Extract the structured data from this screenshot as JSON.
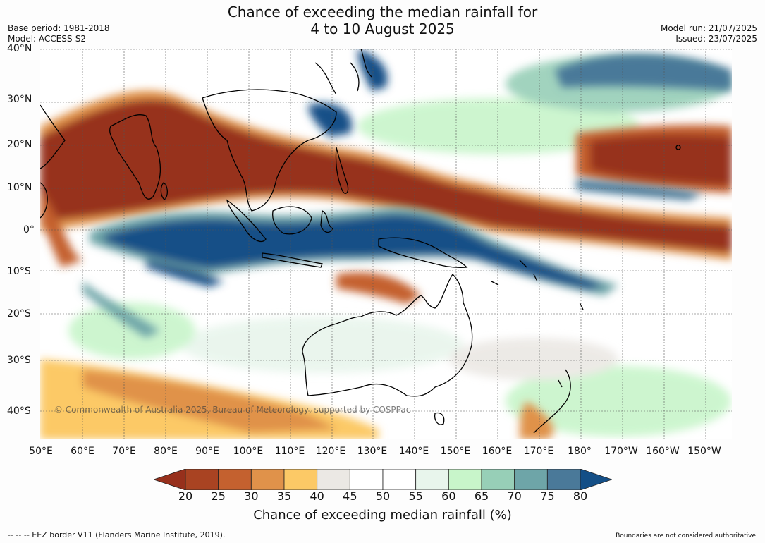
{
  "title": {
    "line1": "Chance of exceeding the median rainfall for",
    "line2": "4 to 10 August 2025"
  },
  "meta": {
    "base_period": "Base period: 1981-2018",
    "model": "Model: ACCESS-S2",
    "model_run": "Model run: 21/07/2025",
    "issued": "Issued: 23/07/2025"
  },
  "map": {
    "region": "Indian Ocean, Maritime Continent, Australia and western Pacific",
    "lat_labels": [
      "40°N",
      "30°N",
      "20°N",
      "10°N",
      "0°",
      "10°S",
      "20°S",
      "30°S",
      "40°S"
    ],
    "lon_labels": [
      "50°E",
      "60°E",
      "70°E",
      "80°E",
      "90°E",
      "100°E",
      "110°E",
      "120°E",
      "130°E",
      "140°E",
      "150°E",
      "160°E",
      "170°E",
      "180°",
      "170°W",
      "160°W",
      "150°W"
    ],
    "copyright": "© Commonwealth of Australia 2025, Bureau of Meteorology, supported by COSPPac"
  },
  "colorbar": {
    "ticks": [
      "20",
      "25",
      "30",
      "35",
      "40",
      "45",
      "50",
      "55",
      "60",
      "65",
      "70",
      "75",
      "80"
    ],
    "colors": [
      "#97301c",
      "#a94322",
      "#c4612f",
      "#e0924a",
      "#fcc966",
      "#ebe8e4",
      "#ffffff",
      "#ffffff",
      "#e8f5ec",
      "#c8f5ca",
      "#97cfb7",
      "#6ea5a8",
      "#4a7999",
      "#144f87"
    ],
    "title": "Chance of exceeding median rainfall (%)"
  },
  "footer": {
    "eez": "--  --  -- EEZ border V11 (Flanders Marine Institute, 2019).",
    "disclaimer": "Boundaries are not considered authoritative"
  }
}
